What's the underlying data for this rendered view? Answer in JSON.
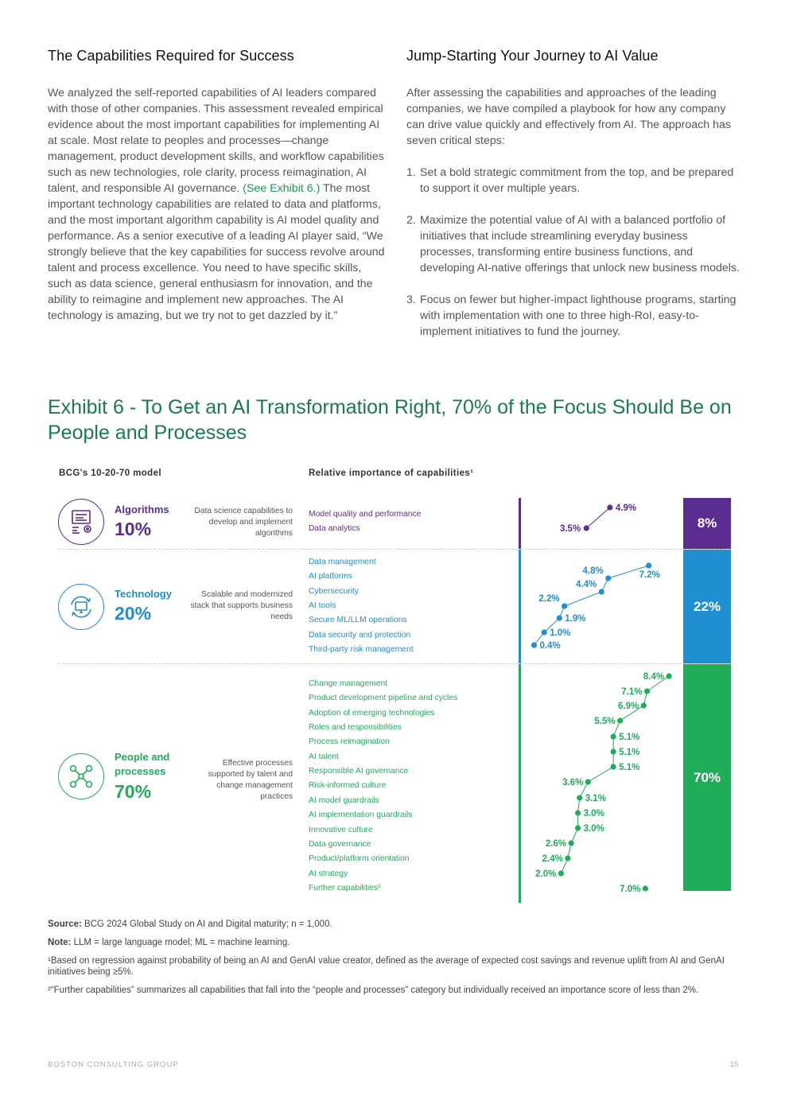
{
  "left_column": {
    "title": "The Capabilities Required for Success",
    "body_before_link": "We analyzed the self-reported capabilities of AI leaders compared with those of other companies. This assessment revealed empirical evidence about the most important capabilities for implementing AI at scale. Most relate to peoples and processes—change management, product development skills, and workflow capabilities such as new technologies, role clarity, process reimagination, AI talent, and responsible AI governance. ",
    "link": "(See Exhibit 6.)",
    "body_after_link": " The most important technology capabilities are related to data and platforms, and the most important algorithm capability is AI model quality and performance. As a senior executive of a leading AI player said, “We strongly believe that the key capabilities for success revolve around talent and process excellence. You need to have specific skills, such as data science, general enthusiasm for innovation, and the ability to reimagine and implement new approaches. The AI technology is amazing, but we try not to get dazzled by it.”"
  },
  "right_column": {
    "title": "Jump-Starting Your Journey to AI Value",
    "intro": "After assessing the capabilities and approaches of the leading companies, we have compiled a playbook for how any company can drive value quickly and effectively from AI. The approach has seven critical steps:",
    "steps": [
      {
        "num": "1.",
        "text": "Set a bold strategic commitment from the top, and be prepared to support it over multiple years."
      },
      {
        "num": "2.",
        "text": "Maximize the potential value of AI with a balanced portfolio of initiatives that include streamlining everyday business processes, transforming entire business functions, and developing AI-native offerings that unlock new business models."
      },
      {
        "num": "3.",
        "text": "Focus on fewer but higher-impact lighthouse programs, starting with implementation with one to three high-RoI, easy-to-implement initiatives to fund the journey."
      }
    ]
  },
  "exhibit": {
    "title": "Exhibit 6 - To Get an AI Transformation Right, 70% of the Focus Should Be on People and Processes",
    "model_header": "BCG's 10-20-70 model",
    "importance_header": "Relative importance of capabilities¹"
  },
  "categories": [
    {
      "name": "Algorithms",
      "pct": "10%",
      "desc": "Data science capabilities to develop and implement algorithms",
      "icon": "algorithm-icon",
      "color": "#5b2d90",
      "bar_label": "8%"
    },
    {
      "name": "Technology",
      "pct": "20%",
      "desc": "Scalable and modernized stack that supports business needs",
      "icon": "monitor-cycle-icon",
      "color": "#1f8fd1",
      "bar_label": "22%"
    },
    {
      "name_line1": "People and",
      "name_line2": "processes",
      "pct": "70%",
      "desc": "Effective processes supported by talent and change management practices",
      "icon": "people-network-icon",
      "color": "#1fad5a",
      "bar_label": "70%"
    }
  ],
  "chart_data": {
    "type": "line",
    "groups": [
      {
        "name": "Algorithms",
        "color": "#5b2d90",
        "capabilities": [
          "Model quality and performance",
          "Data analytics"
        ],
        "values": [
          4.9,
          3.5
        ],
        "labels": [
          "4.9%",
          "3.5%"
        ]
      },
      {
        "name": "Technology",
        "color": "#1f8fd1",
        "capabilities": [
          "Data management",
          "AI platforms",
          "Cybersecurity",
          "AI tools",
          "Secure ML/LLM operations",
          "Data security and protection",
          "Third-party risk management"
        ],
        "values": [
          7.2,
          4.8,
          4.4,
          2.2,
          1.9,
          1.0,
          0.4
        ],
        "labels": [
          "7.2%",
          "4.8%",
          "4.4%",
          "2.2%",
          "1.9%",
          "1.0%",
          "0.4%"
        ]
      },
      {
        "name": "People and processes",
        "color": "#1fad5a",
        "capabilities": [
          "Change management",
          "Product development pipeline and cycles",
          "Adoption of emerging technologies",
          "Roles and responsibilities",
          "Process reimagination",
          "AI talent",
          "Responsible AI governance",
          "Risk-informed culture",
          "AI model guardrails",
          "AI implementation guardrails",
          "Innovative culture",
          "Data governance",
          "Product/platform orientation",
          "AI strategy",
          "Further capabilities²"
        ],
        "values": [
          8.4,
          7.1,
          6.9,
          5.5,
          5.1,
          5.1,
          5.1,
          3.6,
          3.1,
          3.0,
          3.0,
          2.6,
          2.4,
          2.0,
          7.0
        ],
        "labels": [
          "8.4%",
          "7.1%",
          "6.9%",
          "5.5%",
          "5.1%",
          "5.1%",
          "5.1%",
          "3.6%",
          "3.1%",
          "3.0%",
          "3.0%",
          "2.6%",
          "2.4%",
          "2.0%",
          "7.0%"
        ]
      }
    ],
    "bars": [
      {
        "name": "Algorithms",
        "value": 8
      },
      {
        "name": "Technology",
        "value": 22
      },
      {
        "name": "People and processes",
        "value": 70
      }
    ]
  },
  "notes": {
    "source_label": "Source:",
    "source_text": " BCG 2024 Global Study on AI and Digital maturity; n = 1,000.",
    "note_label": "Note:",
    "note_text": " LLM = large language model; ML = machine learning.",
    "footnote1": "¹Based on regression against probability of being an AI and GenAI value creator, defined as the average of expected cost savings and revenue uplift from AI and GenAI initiatives being ≥5%.",
    "footnote2": "²“Further capabilities” summarizes all capabilities that fall into the “people and processes” category but individually received an importance score of less than 2%."
  },
  "footer": {
    "company": "BOSTON CONSULTING GROUP",
    "page": "15"
  }
}
